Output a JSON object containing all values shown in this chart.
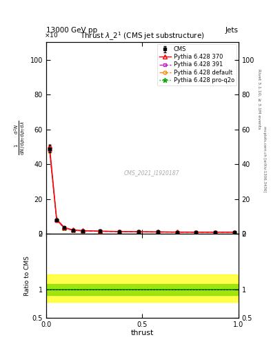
{
  "title": "Thrust $\\lambda\\_2^1$ (CMS jet substructure)",
  "header_left": "13000 GeV pp",
  "header_right": "Jets",
  "watermark": "CMS_2021_I1920187",
  "right_label_top": "Rivet 3.1.10, ≥ 3.1M events",
  "right_label_bottom": "mcplots.cern.ch [arXiv:1306.3436]",
  "xlabel": "thrust",
  "ylim_main": [
    0,
    110
  ],
  "ylim_ratio": [
    0.5,
    2.0
  ],
  "xlim": [
    0,
    1.0
  ],
  "yticks_main": [
    0,
    20,
    40,
    60,
    80,
    100
  ],
  "xticks": [
    0.0,
    0.5,
    1.0
  ],
  "x_data": [
    0.018,
    0.055,
    0.095,
    0.14,
    0.19,
    0.28,
    0.38,
    0.48,
    0.58,
    0.68,
    0.78,
    0.88,
    0.98
  ],
  "cms_y": [
    49.0,
    8.0,
    3.5,
    2.2,
    1.8,
    1.5,
    1.3,
    1.2,
    1.1,
    1.0,
    1.0,
    1.0,
    1.0
  ],
  "cms_yerr": [
    2.0,
    0.5,
    0.2,
    0.15,
    0.12,
    0.1,
    0.1,
    0.1,
    0.1,
    0.1,
    0.1,
    0.1,
    0.1
  ],
  "py370_y": [
    50.5,
    8.5,
    3.7,
    2.3,
    1.9,
    1.6,
    1.4,
    1.3,
    1.2,
    1.1,
    1.05,
    1.05,
    1.05
  ],
  "py391_y": [
    48.5,
    7.8,
    3.4,
    2.1,
    1.75,
    1.5,
    1.28,
    1.18,
    1.08,
    0.98,
    0.95,
    0.95,
    0.95
  ],
  "pydef_y": [
    47.5,
    7.6,
    3.3,
    2.05,
    1.7,
    1.45,
    1.25,
    1.15,
    1.05,
    0.95,
    0.92,
    0.92,
    0.92
  ],
  "pyq2o_y": [
    48.0,
    7.9,
    3.45,
    2.15,
    1.78,
    1.52,
    1.3,
    1.2,
    1.1,
    1.0,
    0.98,
    0.98,
    0.98
  ],
  "ratio_band_yellow_low": 0.78,
  "ratio_band_yellow_high": 1.28,
  "ratio_band_green_low": 0.9,
  "ratio_band_green_high": 1.1,
  "colors": {
    "cms": "#000000",
    "py370": "#ff0000",
    "py391": "#bb00bb",
    "pydef": "#ff8800",
    "pyq2o": "#00aa00"
  }
}
